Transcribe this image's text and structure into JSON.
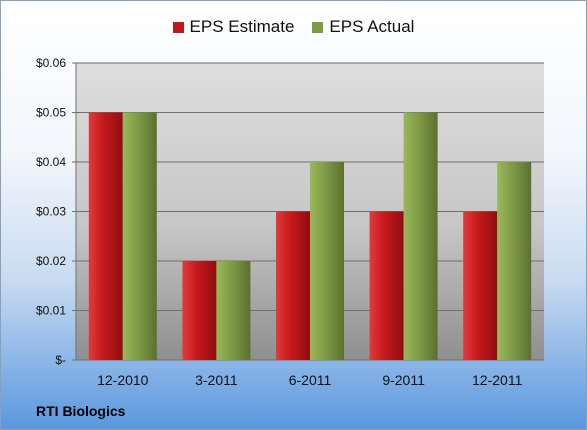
{
  "company": "RTI Biologics",
  "colors": {
    "estimate": "#c0191c",
    "actual": "#7f9a45"
  },
  "chart_data": {
    "type": "bar",
    "categories": [
      "12-2010",
      "3-2011",
      "6-2011",
      "9-2011",
      "12-2011"
    ],
    "series": [
      {
        "name": "EPS Estimate",
        "values": [
          0.05,
          0.02,
          0.03,
          0.03,
          0.03
        ]
      },
      {
        "name": "EPS Actual",
        "values": [
          0.05,
          0.02,
          0.04,
          0.05,
          0.04
        ]
      }
    ],
    "ylim": [
      0,
      0.06
    ],
    "yticks": [
      {
        "value": 0,
        "label": "$-"
      },
      {
        "value": 0.01,
        "label": "$0.01"
      },
      {
        "value": 0.02,
        "label": "$0.02"
      },
      {
        "value": 0.03,
        "label": "$0.03"
      },
      {
        "value": 0.04,
        "label": "$0.04"
      },
      {
        "value": 0.05,
        "label": "$0.05"
      },
      {
        "value": 0.06,
        "label": "$0.06"
      }
    ],
    "grid": true,
    "legend_position": "top"
  }
}
